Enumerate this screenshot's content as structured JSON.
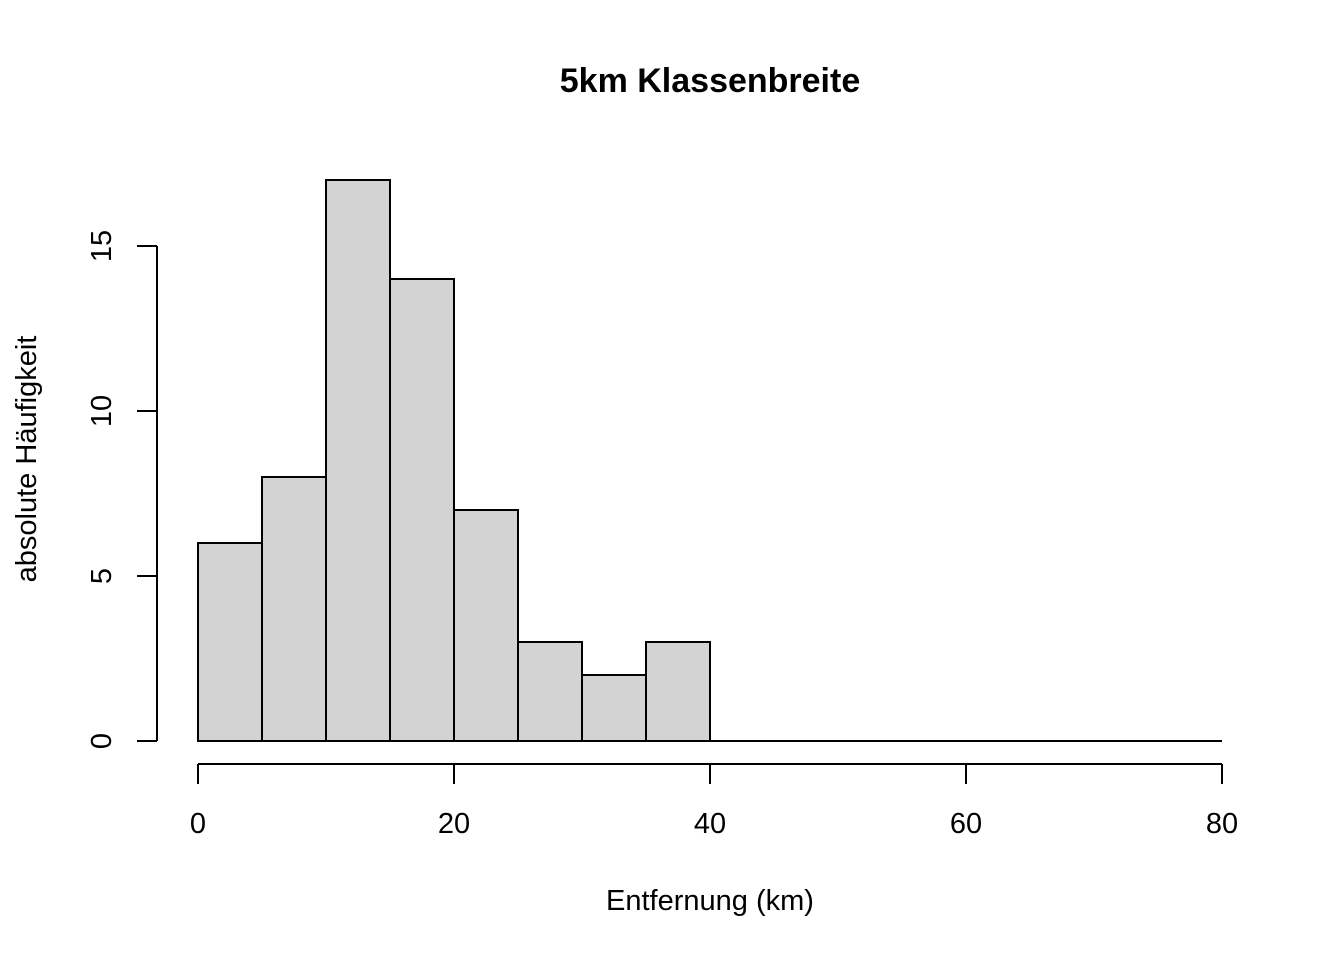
{
  "chart_data": {
    "type": "bar",
    "title": "5km Klassenbreite",
    "xlabel": "Entfernung (km)",
    "ylabel": "absolute Häufigkeit",
    "bin_width": 5,
    "bins": [
      {
        "start": 0,
        "end": 5,
        "count": 6
      },
      {
        "start": 5,
        "end": 10,
        "count": 8
      },
      {
        "start": 10,
        "end": 15,
        "count": 17
      },
      {
        "start": 15,
        "end": 20,
        "count": 14
      },
      {
        "start": 20,
        "end": 25,
        "count": 7
      },
      {
        "start": 25,
        "end": 30,
        "count": 3
      },
      {
        "start": 30,
        "end": 35,
        "count": 2
      },
      {
        "start": 35,
        "end": 40,
        "count": 3
      },
      {
        "start": 40,
        "end": 45,
        "count": 0
      },
      {
        "start": 45,
        "end": 50,
        "count": 0
      },
      {
        "start": 50,
        "end": 55,
        "count": 0
      },
      {
        "start": 55,
        "end": 60,
        "count": 0
      },
      {
        "start": 60,
        "end": 65,
        "count": 0
      },
      {
        "start": 65,
        "end": 70,
        "count": 0
      },
      {
        "start": 70,
        "end": 75,
        "count": 0
      },
      {
        "start": 75,
        "end": 80,
        "count": 0
      }
    ],
    "xlim": [
      0,
      80
    ],
    "ylim": [
      0,
      17
    ],
    "x_ticks": [
      "0",
      "20",
      "40",
      "60",
      "80"
    ],
    "y_ticks": [
      "0",
      "5",
      "10",
      "15"
    ],
    "grid": false,
    "legend": "none",
    "colors": {
      "bar_fill": "#d3d3d3",
      "bar_stroke": "#000000"
    }
  }
}
